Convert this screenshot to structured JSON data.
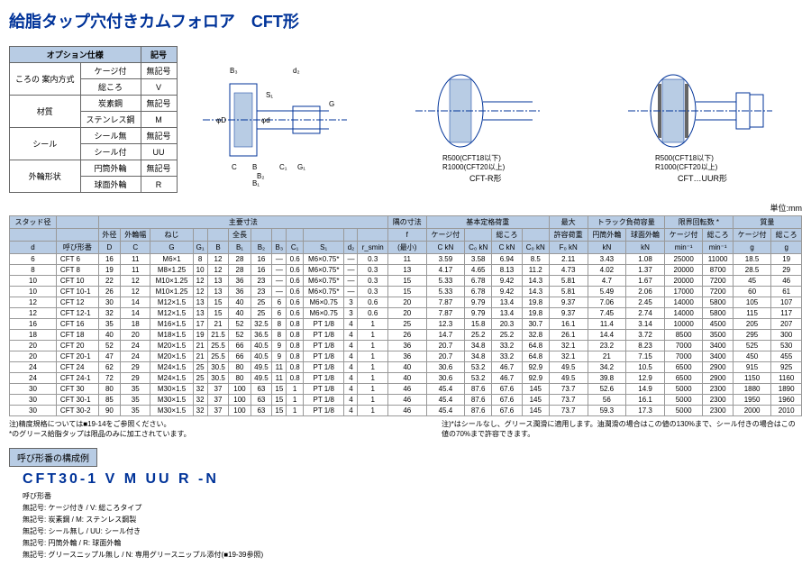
{
  "title": "給脂タップ穴付きカムフォロア　CFT形",
  "option_table": {
    "header": [
      "オプション仕様",
      "記号"
    ],
    "rows": [
      [
        "ころの\n案内方式",
        "ケージ付",
        "無記号"
      ],
      [
        "",
        "総ころ",
        "V"
      ],
      [
        "材質",
        "炭素鋼",
        "無記号"
      ],
      [
        "",
        "ステンレス鋼",
        "M"
      ],
      [
        "シール",
        "シール無",
        "無記号"
      ],
      [
        "",
        "シール付",
        "UU"
      ],
      [
        "外輪形状",
        "円筒外輪",
        "無記号"
      ],
      [
        "",
        "球面外輪",
        "R"
      ]
    ]
  },
  "diagrams": {
    "labels": [
      "B₃",
      "d₂",
      "S₁",
      "φD",
      "φd",
      "C",
      "B",
      "G",
      "C₁",
      "G₁",
      "B₂",
      "B₁"
    ],
    "radius_text": [
      "R500(CFT18以下)",
      "R1000(CFT20以上)"
    ],
    "types": [
      "CFT-R形",
      "CFT…UUR形"
    ]
  },
  "unit": "単位:mm",
  "main_table": {
    "group_headers": [
      "スタッド径",
      "",
      "主要寸法",
      "",
      "",
      "",
      "",
      "",
      "",
      "",
      "",
      "",
      "",
      "",
      "隅の寸法",
      "基本定格荷重",
      "",
      "",
      "",
      "最大",
      "トラック負荷容量",
      "",
      "限界回転数 *",
      "",
      "質量",
      ""
    ],
    "sub_headers1": [
      "",
      "",
      "外径",
      "外輪幅",
      "ねじ",
      "",
      "",
      "全長",
      "",
      "",
      "",
      "",
      "",
      "",
      "f",
      "ケージ付",
      "",
      "総ころ",
      "",
      "許容荷重",
      "円筒外輪",
      "球面外輪",
      "ケージ付",
      "総ころ",
      "ケージ付",
      "総ころ"
    ],
    "sub_headers2": [
      "d",
      "呼び形番",
      "D",
      "C",
      "G",
      "G₁",
      "B",
      "B₁",
      "B₂",
      "B₃",
      "C₁",
      "S₁",
      "d₂",
      "r_smin",
      "(最小)",
      "C kN",
      "C₀ kN",
      "C kN",
      "C₀ kN",
      "F₀ kN",
      "kN",
      "kN",
      "min⁻¹",
      "min⁻¹",
      "g",
      "g"
    ],
    "rows": [
      [
        "6",
        "CFT 6",
        "16",
        "11",
        "M6×1",
        "8",
        "12",
        "28",
        "16",
        "—",
        "0.6",
        "M6×0.75*",
        "—",
        "0.3",
        "11",
        "3.59",
        "3.58",
        "6.94",
        "8.5",
        "2.11",
        "3.43",
        "1.08",
        "25000",
        "11000",
        "18.5",
        "19"
      ],
      [
        "8",
        "CFT 8",
        "19",
        "11",
        "M8×1.25",
        "10",
        "12",
        "28",
        "16",
        "—",
        "0.6",
        "M6×0.75*",
        "—",
        "0.3",
        "13",
        "4.17",
        "4.65",
        "8.13",
        "11.2",
        "4.73",
        "4.02",
        "1.37",
        "20000",
        "8700",
        "28.5",
        "29"
      ],
      [
        "10",
        "CFT 10",
        "22",
        "12",
        "M10×1.25",
        "12",
        "13",
        "36",
        "23",
        "—",
        "0.6",
        "M6×0.75*",
        "—",
        "0.3",
        "15",
        "5.33",
        "6.78",
        "9.42",
        "14.3",
        "5.81",
        "4.7",
        "1.67",
        "20000",
        "7200",
        "45",
        "46"
      ],
      [
        "10",
        "CFT 10-1",
        "26",
        "12",
        "M10×1.25",
        "12",
        "13",
        "36",
        "23",
        "—",
        "0.6",
        "M6×0.75*",
        "—",
        "0.3",
        "15",
        "5.33",
        "6.78",
        "9.42",
        "14.3",
        "5.81",
        "5.49",
        "2.06",
        "17000",
        "7200",
        "60",
        "61"
      ],
      [
        "12",
        "CFT 12",
        "30",
        "14",
        "M12×1.5",
        "13",
        "15",
        "40",
        "25",
        "6",
        "0.6",
        "M6×0.75",
        "3",
        "0.6",
        "20",
        "7.87",
        "9.79",
        "13.4",
        "19.8",
        "9.37",
        "7.06",
        "2.45",
        "14000",
        "5800",
        "105",
        "107"
      ],
      [
        "12",
        "CFT 12-1",
        "32",
        "14",
        "M12×1.5",
        "13",
        "15",
        "40",
        "25",
        "6",
        "0.6",
        "M6×0.75",
        "3",
        "0.6",
        "20",
        "7.87",
        "9.79",
        "13.4",
        "19.8",
        "9.37",
        "7.45",
        "2.74",
        "14000",
        "5800",
        "115",
        "117"
      ],
      [
        "16",
        "CFT 16",
        "35",
        "18",
        "M16×1.5",
        "17",
        "21",
        "52",
        "32.5",
        "8",
        "0.8",
        "PT 1/8",
        "4",
        "1",
        "25",
        "12.3",
        "15.8",
        "20.3",
        "30.7",
        "16.1",
        "11.4",
        "3.14",
        "10000",
        "4500",
        "205",
        "207"
      ],
      [
        "18",
        "CFT 18",
        "40",
        "20",
        "M18×1.5",
        "19",
        "21.5",
        "52",
        "36.5",
        "8",
        "0.8",
        "PT 1/8",
        "4",
        "1",
        "26",
        "14.7",
        "25.2",
        "25.2",
        "32.8",
        "26.1",
        "14.4",
        "3.72",
        "8500",
        "3500",
        "295",
        "300"
      ],
      [
        "20",
        "CFT 20",
        "52",
        "24",
        "M20×1.5",
        "21",
        "25.5",
        "66",
        "40.5",
        "9",
        "0.8",
        "PT 1/8",
        "4",
        "1",
        "36",
        "20.7",
        "34.8",
        "33.2",
        "64.8",
        "32.1",
        "23.2",
        "8.23",
        "7000",
        "3400",
        "525",
        "530"
      ],
      [
        "20",
        "CFT 20-1",
        "47",
        "24",
        "M20×1.5",
        "21",
        "25.5",
        "66",
        "40.5",
        "9",
        "0.8",
        "PT 1/8",
        "4",
        "1",
        "36",
        "20.7",
        "34.8",
        "33.2",
        "64.8",
        "32.1",
        "21",
        "7.15",
        "7000",
        "3400",
        "450",
        "455"
      ],
      [
        "24",
        "CFT 24",
        "62",
        "29",
        "M24×1.5",
        "25",
        "30.5",
        "80",
        "49.5",
        "11",
        "0.8",
        "PT 1/8",
        "4",
        "1",
        "40",
        "30.6",
        "53.2",
        "46.7",
        "92.9",
        "49.5",
        "34.2",
        "10.5",
        "6500",
        "2900",
        "915",
        "925"
      ],
      [
        "24",
        "CFT 24-1",
        "72",
        "29",
        "M24×1.5",
        "25",
        "30.5",
        "80",
        "49.5",
        "11",
        "0.8",
        "PT 1/8",
        "4",
        "1",
        "40",
        "30.6",
        "53.2",
        "46.7",
        "92.9",
        "49.5",
        "39.8",
        "12.9",
        "6500",
        "2900",
        "1150",
        "1160"
      ],
      [
        "30",
        "CFT 30",
        "80",
        "35",
        "M30×1.5",
        "32",
        "37",
        "100",
        "63",
        "15",
        "1",
        "PT 1/8",
        "4",
        "1",
        "46",
        "45.4",
        "87.6",
        "67.6",
        "145",
        "73.7",
        "52.6",
        "14.9",
        "5000",
        "2300",
        "1880",
        "1890"
      ],
      [
        "30",
        "CFT 30-1",
        "85",
        "35",
        "M30×1.5",
        "32",
        "37",
        "100",
        "63",
        "15",
        "1",
        "PT 1/8",
        "4",
        "1",
        "46",
        "45.4",
        "87.6",
        "67.6",
        "145",
        "73.7",
        "56",
        "16.1",
        "5000",
        "2300",
        "1950",
        "1960"
      ],
      [
        "30",
        "CFT 30-2",
        "90",
        "35",
        "M30×1.5",
        "32",
        "37",
        "100",
        "63",
        "15",
        "1",
        "PT 1/8",
        "4",
        "1",
        "46",
        "45.4",
        "87.6",
        "67.6",
        "145",
        "73.7",
        "59.3",
        "17.3",
        "5000",
        "2300",
        "2000",
        "2010"
      ]
    ]
  },
  "notes": {
    "left": [
      "注)精度規格については■19-14をご参照ください。",
      "*のグリース給脂タップは限品のみに加工されています。"
    ],
    "right": "注)*はシールなし、グリース潤滑に適用します。油潤滑の場合はこの値の130%まで、シール付きの場合はこの値の70%まで許容できます。"
  },
  "composition": {
    "header": "呼び形番の構成例",
    "model": "CFT30-1 V M UU R -N",
    "items": [
      "呼び形番",
      "無記号: ケージ付き / V: 総ころタイプ",
      "無記号: 炭素鋼 / M: ステンレス鋼製",
      "無記号: シール無し / UU: シール付き",
      "無記号: 円筒外輪 / R: 球面外輪",
      "無記号: グリースニップル無し / N: 専用グリースニップル添付(■19-39参照)"
    ]
  },
  "colors": {
    "header_bg": "#b8cce4",
    "title": "#003399",
    "border": "#666"
  }
}
